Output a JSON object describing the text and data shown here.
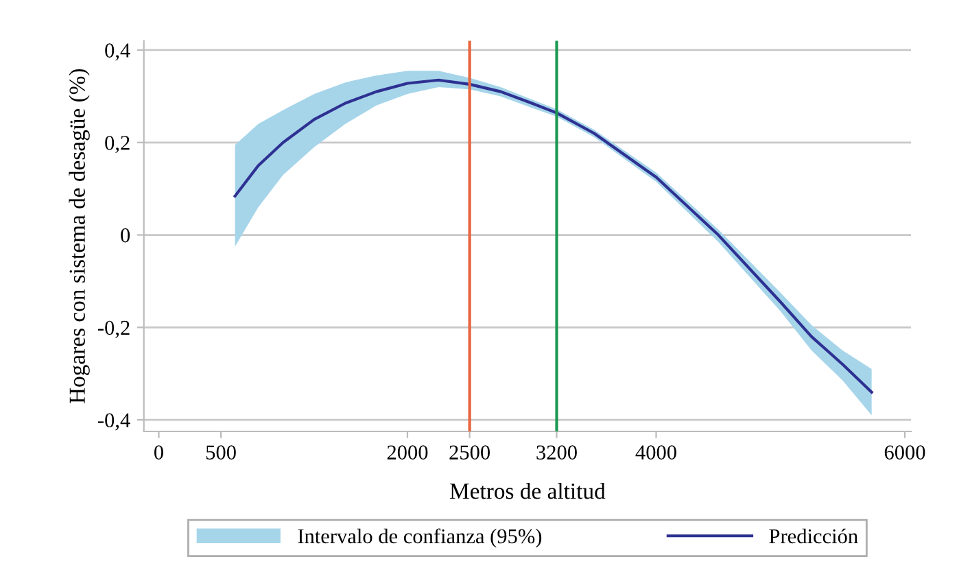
{
  "chart_data": {
    "type": "line",
    "xlabel": "Metros de altitud",
    "ylabel": "Hogares con sistema de desagüe (%)",
    "x": [
      613,
      800,
      1000,
      1250,
      1500,
      1750,
      2000,
      2250,
      2500,
      2750,
      3000,
      3200,
      3500,
      4000,
      4500,
      5000,
      5250,
      5500,
      5733
    ],
    "annotations": [
      "Intervalo de confianza (95%)"
    ],
    "series": [
      {
        "name": "Predicción",
        "color": "#2e3192",
        "values": [
          0.084,
          0.15,
          0.2,
          0.25,
          0.285,
          0.31,
          0.328,
          0.335,
          0.326,
          0.31,
          0.285,
          0.264,
          0.22,
          0.125,
          0.0,
          -0.145,
          -0.22,
          -0.28,
          -0.34
        ],
        "lower": [
          -0.025,
          0.06,
          0.13,
          0.19,
          0.24,
          0.28,
          0.305,
          0.32,
          0.315,
          0.3,
          0.275,
          0.256,
          0.212,
          0.115,
          -0.015,
          -0.165,
          -0.25,
          -0.315,
          -0.39
        ],
        "upper": [
          0.195,
          0.24,
          0.27,
          0.305,
          0.33,
          0.345,
          0.355,
          0.355,
          0.34,
          0.32,
          0.293,
          0.272,
          0.228,
          0.135,
          0.012,
          -0.125,
          -0.195,
          -0.25,
          -0.29
        ]
      }
    ],
    "xlim": [
      -120,
      6050
    ],
    "xticks": [
      0,
      500,
      2000,
      2500,
      3200,
      4000,
      6000
    ],
    "ylim": [
      -0.425,
      0.42
    ],
    "yticks": [
      {
        "value": -0.4,
        "label": "-0,4"
      },
      {
        "value": -0.2,
        "label": "-0,2"
      },
      0,
      {
        "value": 0.2,
        "label": "0,2"
      },
      {
        "value": 0.4,
        "label": "0,4"
      }
    ],
    "ref_lines": [
      {
        "axis": "x",
        "value": 2500,
        "color": "#e8643c"
      },
      {
        "axis": "x",
        "value": 3200,
        "color": "#1a9850"
      }
    ],
    "grid": "y",
    "legend": "bottom"
  }
}
